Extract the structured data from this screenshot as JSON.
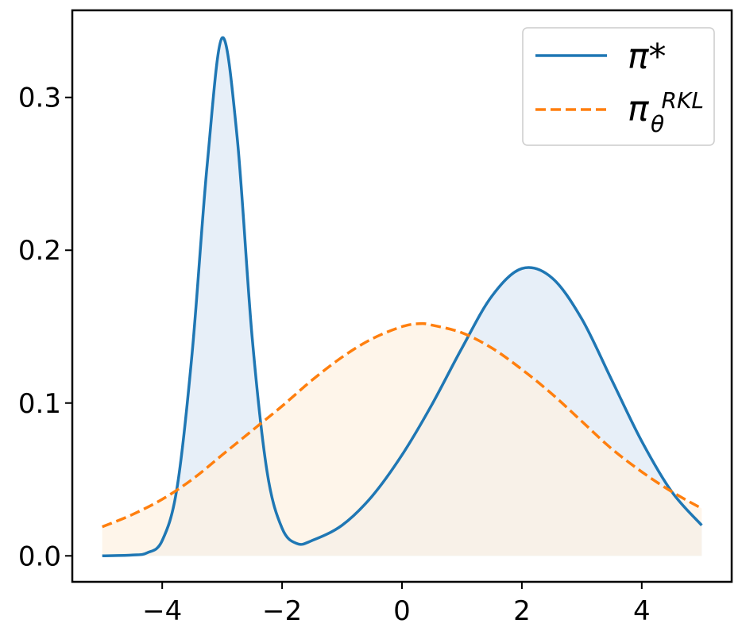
{
  "chart_data": {
    "type": "line",
    "title": "",
    "xlabel": "",
    "ylabel": "",
    "xlim": [
      -5.5,
      5.5
    ],
    "ylim": [
      -0.017,
      0.357
    ],
    "grid": false,
    "legend_position": "top-right",
    "x_ticks": [
      -4,
      -2,
      0,
      2,
      4
    ],
    "x_tick_labels": [
      "−4",
      "−2",
      "0",
      "2",
      "4"
    ],
    "y_ticks": [
      0.0,
      0.1,
      0.2,
      0.3
    ],
    "y_tick_labels": [
      "0.0",
      "0.1",
      "0.2",
      "0.3"
    ],
    "series": [
      {
        "name": "π*",
        "color": "#1f77b4",
        "fill_color": "#e7eff8",
        "style": "solid",
        "filled": true,
        "x": [
          -5.0,
          -4.5,
          -4.25,
          -4.0,
          -3.75,
          -3.5,
          -3.25,
          -3.0,
          -2.75,
          -2.5,
          -2.25,
          -2.0,
          -1.75,
          -1.5,
          -1.0,
          -0.5,
          0.0,
          0.5,
          1.0,
          1.5,
          2.0,
          2.5,
          3.0,
          3.5,
          4.0,
          4.5,
          5.0
        ],
        "values": [
          0.0,
          0.0005,
          0.002,
          0.01,
          0.045,
          0.133,
          0.256,
          0.339,
          0.274,
          0.143,
          0.055,
          0.018,
          0.008,
          0.01,
          0.02,
          0.039,
          0.066,
          0.099,
          0.136,
          0.17,
          0.188,
          0.182,
          0.155,
          0.115,
          0.075,
          0.042,
          0.02
        ]
      },
      {
        "name": "πθRKL",
        "label_base": "π",
        "label_sub": "θ",
        "label_sup": "RKL",
        "color": "#ff7f0e",
        "fill_color": "#fef1e3",
        "style": "dashed",
        "filled": true,
        "x": [
          -5.0,
          -4.5,
          -4.0,
          -3.5,
          -3.0,
          -2.5,
          -2.0,
          -1.5,
          -1.0,
          -0.5,
          0.0,
          0.3,
          0.5,
          1.0,
          1.5,
          2.0,
          2.5,
          3.0,
          3.5,
          4.0,
          4.5,
          5.0
        ],
        "values": [
          0.019,
          0.027,
          0.037,
          0.05,
          0.066,
          0.082,
          0.098,
          0.115,
          0.13,
          0.142,
          0.15,
          0.152,
          0.151,
          0.146,
          0.136,
          0.122,
          0.106,
          0.088,
          0.07,
          0.055,
          0.042,
          0.031
        ]
      }
    ],
    "overlap_fill_color": "#ebe6e0"
  }
}
